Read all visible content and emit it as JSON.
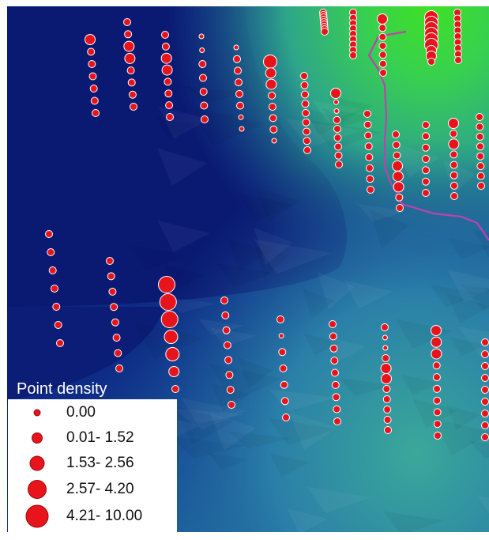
{
  "legend": {
    "title": "Point density",
    "classes": [
      {
        "label": "0.00",
        "size_class": 1
      },
      {
        "label": "0.01- 1.52",
        "size_class": 2
      },
      {
        "label": "1.53- 2.56",
        "size_class": 3
      },
      {
        "label": "2.57- 4.20",
        "size_class": 4
      },
      {
        "label": "4.21- 10.00",
        "size_class": 5
      }
    ]
  },
  "colors": {
    "background_low": "#0a1a73",
    "surface_mid": "#2a7fa8",
    "surface_high": "#34c86a",
    "surface_peak": "#3fe024",
    "point_fill": "#e8141c",
    "point_outline": "#ffffff",
    "boundary_line": "#c040b0"
  },
  "points": {
    "encoding": "density class 1-5 per sample point, by transect",
    "transects": [
      [
        3,
        2,
        2,
        2,
        2,
        2,
        2
      ],
      [
        2,
        2,
        3,
        3,
        2,
        2,
        2,
        2
      ],
      [
        2,
        2,
        3,
        3,
        2,
        2,
        2,
        2
      ],
      [
        1,
        1,
        2,
        2,
        2,
        2,
        2
      ],
      [
        1,
        2,
        2,
        2,
        2,
        2,
        1,
        1
      ],
      [
        4,
        3,
        3,
        2,
        2,
        2,
        2,
        1
      ],
      [
        2,
        2,
        2,
        2,
        2,
        2,
        2,
        2,
        2
      ],
      [
        3,
        1,
        1,
        2,
        2,
        2,
        2,
        2,
        2
      ],
      [
        2,
        2,
        2,
        2,
        2,
        2,
        2,
        2
      ],
      [
        2,
        2,
        2,
        3,
        3,
        3,
        2,
        2
      ],
      [
        2,
        2,
        2,
        2,
        2,
        2,
        2
      ],
      [
        3,
        2,
        3,
        2,
        2,
        2,
        2,
        2
      ],
      [
        2,
        2,
        2,
        2,
        2,
        2,
        2,
        2
      ],
      [
        2,
        2,
        2,
        2,
        2,
        2,
        2
      ],
      [
        2,
        2,
        2,
        2,
        2,
        2,
        2,
        2
      ],
      [
        5,
        5,
        5,
        4,
        4,
        3,
        2
      ],
      [
        2,
        2,
        2,
        2,
        2,
        2,
        2,
        2
      ],
      [
        2,
        1,
        2,
        2,
        2,
        2,
        2
      ],
      [
        2,
        2,
        2,
        2,
        2,
        2,
        2,
        2,
        2
      ],
      [
        2,
        1,
        1,
        2,
        3,
        3,
        2,
        2,
        2,
        2,
        2
      ],
      [
        3,
        3,
        3,
        2,
        2,
        2,
        2,
        2,
        2,
        2
      ],
      [
        2,
        2,
        2,
        2,
        2,
        2,
        2,
        2,
        2
      ],
      [
        2,
        2,
        2,
        2,
        2,
        2,
        2,
        2,
        2
      ],
      [
        2,
        2,
        2,
        2,
        2,
        2,
        2,
        2,
        2
      ],
      [
        3,
        2,
        2,
        2,
        2,
        2,
        2
      ],
      [
        4,
        4,
        4,
        4,
        4,
        4,
        3,
        3,
        2
      ],
      [
        2,
        2,
        2,
        2,
        2,
        2,
        2,
        2,
        2
      ]
    ]
  }
}
